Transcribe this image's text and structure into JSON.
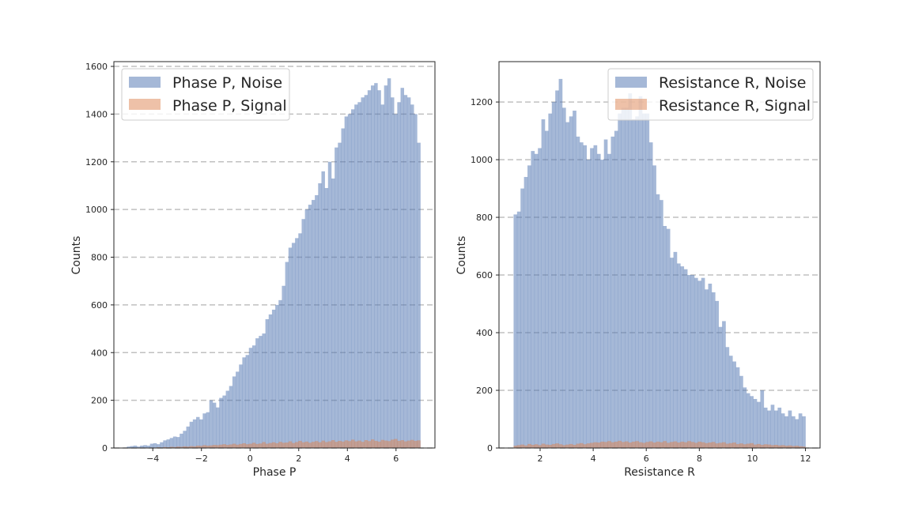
{
  "colors": {
    "noise": "#4c72b0",
    "signal": "#dd8452",
    "grid": "#b0b0b0",
    "axis": "#262626"
  },
  "chart_data": [
    {
      "type": "histogram",
      "xlabel": "Phase P",
      "ylabel": "Counts",
      "xlim": [
        -5.6,
        7.6
      ],
      "ylim": [
        0,
        1620
      ],
      "xticks": [
        -4,
        -2,
        0,
        2,
        4,
        6
      ],
      "yticks": [
        0,
        200,
        400,
        600,
        800,
        1000,
        1200,
        1400,
        1600
      ],
      "grid": "y dashed",
      "legend_placement": "upper left",
      "bin_range": [
        -5.2,
        7.0
      ],
      "series": [
        {
          "name": "Phase P, Noise",
          "color": "#4c72b0",
          "alpha": 0.5,
          "values": [
            2,
            6,
            8,
            10,
            6,
            10,
            12,
            10,
            18,
            20,
            16,
            24,
            32,
            36,
            42,
            48,
            46,
            60,
            72,
            90,
            110,
            120,
            130,
            120,
            145,
            150,
            200,
            190,
            170,
            210,
            220,
            240,
            260,
            300,
            320,
            350,
            380,
            390,
            420,
            430,
            460,
            470,
            480,
            540,
            560,
            580,
            600,
            620,
            680,
            780,
            840,
            860,
            880,
            900,
            960,
            1000,
            1020,
            1040,
            1060,
            1110,
            1160,
            1090,
            1200,
            1130,
            1260,
            1280,
            1340,
            1390,
            1400,
            1420,
            1440,
            1450,
            1470,
            1480,
            1500,
            1520,
            1530,
            1500,
            1440,
            1520,
            1550,
            1470,
            1400,
            1450,
            1510,
            1480,
            1470,
            1440,
            1400,
            1280
          ]
        },
        {
          "name": "Phase P, Signal",
          "color": "#dd8452",
          "alpha": 0.5,
          "values": [
            1,
            0,
            1,
            0,
            1,
            2,
            0,
            1,
            2,
            1,
            3,
            2,
            4,
            3,
            5,
            4,
            6,
            5,
            7,
            6,
            8,
            7,
            10,
            9,
            12,
            10,
            11,
            13,
            12,
            14,
            16,
            13,
            15,
            18,
            14,
            17,
            20,
            16,
            18,
            22,
            17,
            19,
            25,
            18,
            21,
            24,
            20,
            26,
            22,
            23,
            28,
            21,
            25,
            30,
            24,
            27,
            22,
            26,
            29,
            24,
            31,
            25,
            28,
            33,
            26,
            30,
            27,
            32,
            29,
            35,
            28,
            31,
            26,
            33,
            29,
            36,
            30,
            27,
            34,
            31,
            29,
            35,
            38,
            30,
            33,
            28,
            31,
            34,
            30,
            32
          ]
        }
      ]
    },
    {
      "type": "histogram",
      "xlabel": "Resistance R",
      "ylabel": "Counts",
      "xlim": [
        0.45,
        12.55
      ],
      "ylim": [
        0,
        1340
      ],
      "xticks": [
        2,
        4,
        6,
        8,
        10,
        12
      ],
      "yticks": [
        0,
        200,
        400,
        600,
        800,
        1000,
        1200
      ],
      "grid": "y dashed",
      "legend_placement": "upper right",
      "bin_range": [
        1.0,
        12.0
      ],
      "series": [
        {
          "name": "Resistance R, Noise",
          "color": "#4c72b0",
          "alpha": 0.5,
          "values": [
            810,
            820,
            900,
            940,
            980,
            1030,
            1020,
            1040,
            1140,
            1100,
            1160,
            1200,
            1240,
            1280,
            1180,
            1130,
            1150,
            1170,
            1080,
            1060,
            1050,
            1000,
            1040,
            1050,
            1020,
            1000,
            1070,
            1020,
            1080,
            1100,
            1160,
            1180,
            1180,
            1230,
            1140,
            1150,
            1220,
            1160,
            1160,
            1060,
            980,
            880,
            860,
            770,
            760,
            660,
            680,
            640,
            630,
            620,
            600,
            600,
            590,
            580,
            590,
            550,
            570,
            540,
            510,
            420,
            440,
            350,
            320,
            300,
            280,
            250,
            210,
            190,
            180,
            170,
            160,
            200,
            140,
            130,
            150,
            130,
            140,
            120,
            110,
            130,
            110,
            100,
            120,
            110
          ]
        },
        {
          "name": "Resistance R, Signal",
          "color": "#dd8452",
          "alpha": 0.5,
          "values": [
            8,
            10,
            12,
            9,
            14,
            11,
            13,
            10,
            15,
            12,
            11,
            14,
            16,
            13,
            10,
            12,
            14,
            11,
            15,
            17,
            13,
            16,
            18,
            20,
            19,
            22,
            21,
            24,
            20,
            22,
            25,
            21,
            23,
            19,
            22,
            24,
            20,
            18,
            21,
            23,
            19,
            22,
            20,
            24,
            18,
            21,
            23,
            19,
            22,
            20,
            24,
            21,
            18,
            22,
            20,
            17,
            19,
            21,
            16,
            18,
            20,
            15,
            17,
            19,
            14,
            16,
            13,
            15,
            17,
            12,
            14,
            11,
            13,
            12,
            10,
            11,
            9,
            10,
            8,
            9,
            7,
            8,
            6,
            5
          ]
        }
      ]
    }
  ]
}
